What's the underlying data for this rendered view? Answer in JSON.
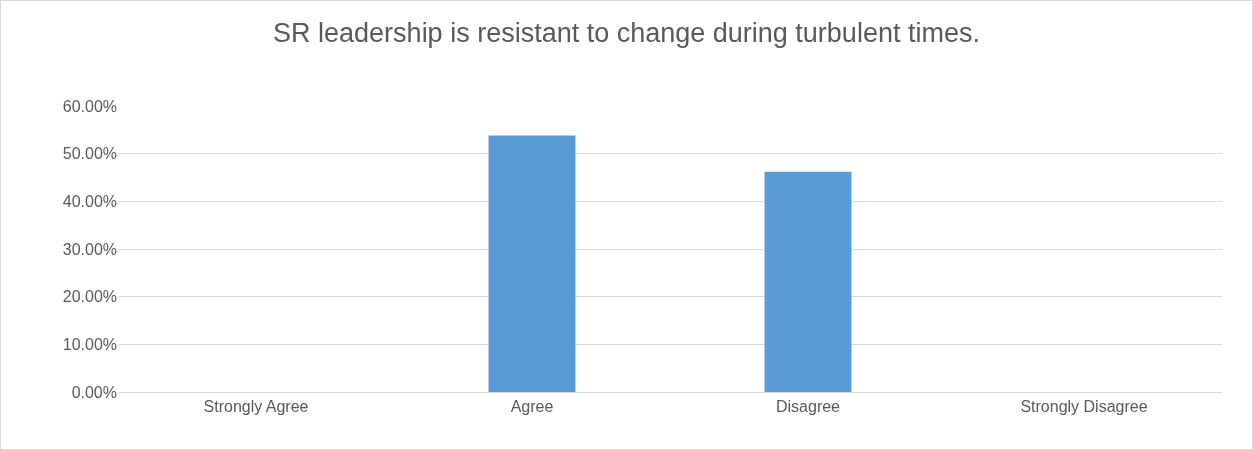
{
  "chart_data": {
    "type": "bar",
    "title": "SR leadership is resistant to change during turbulent times.",
    "categories": [
      "Strongly Agree",
      "Agree",
      "Disagree",
      "Strongly Disagree"
    ],
    "values": [
      0,
      53.8,
      46.2,
      0
    ],
    "color": "#5b9bd5",
    "ylim": [
      0,
      60
    ],
    "yticks": [
      {
        "value": 0,
        "label": "0.00%"
      },
      {
        "value": 10,
        "label": "10.00%"
      },
      {
        "value": 20,
        "label": "20.00%"
      },
      {
        "value": 30,
        "label": "30.00%"
      },
      {
        "value": 40,
        "label": "40.00%"
      },
      {
        "value": 50,
        "label": "50.00%"
      },
      {
        "value": 60,
        "label": "60.00%"
      }
    ],
    "grid": "y",
    "legend": false
  }
}
